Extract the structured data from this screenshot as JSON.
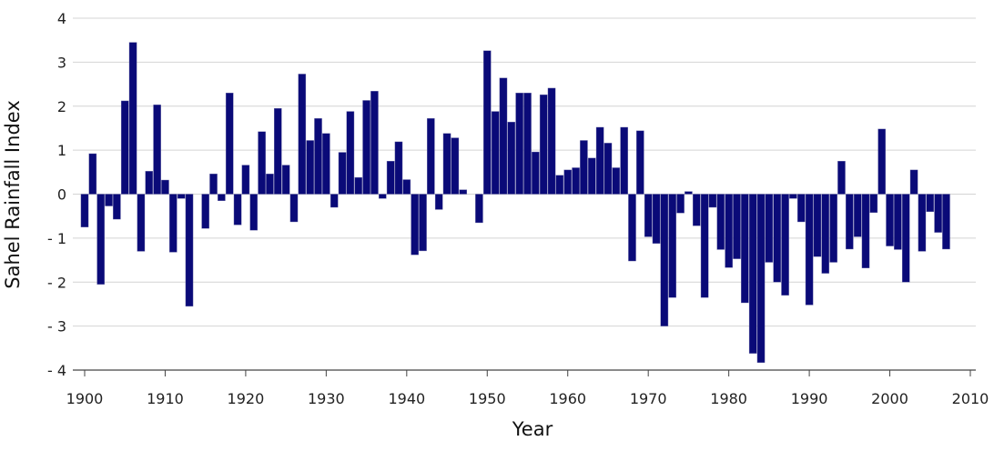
{
  "chart_data": {
    "type": "bar",
    "title": "",
    "xlabel": "Year",
    "ylabel": "Sahel Rainfall Index",
    "xlim": [
      1899,
      2010
    ],
    "ylim": [
      -4,
      4
    ],
    "x_ticks": [
      1900,
      1910,
      1920,
      1930,
      1940,
      1950,
      1960,
      1970,
      1980,
      1990,
      2000,
      2010
    ],
    "y_ticks": [
      4,
      3,
      2,
      1,
      0,
      -1,
      -2,
      -3,
      -4
    ],
    "y_tick_labels": [
      "4",
      "3",
      "2",
      "1",
      "0",
      "- 1",
      "- 2",
      "- 3",
      "- 4"
    ],
    "grid": "horizontal",
    "bar_color": "#0a0a78",
    "years": [
      1900,
      1901,
      1902,
      1903,
      1904,
      1905,
      1906,
      1907,
      1908,
      1909,
      1910,
      1911,
      1912,
      1913,
      1914,
      1915,
      1916,
      1917,
      1918,
      1919,
      1920,
      1921,
      1922,
      1923,
      1924,
      1925,
      1926,
      1927,
      1928,
      1929,
      1930,
      1931,
      1932,
      1933,
      1934,
      1935,
      1936,
      1937,
      1938,
      1939,
      1940,
      1941,
      1942,
      1943,
      1944,
      1945,
      1946,
      1947,
      1948,
      1949,
      1950,
      1951,
      1952,
      1953,
      1954,
      1955,
      1956,
      1957,
      1958,
      1959,
      1960,
      1961,
      1962,
      1963,
      1964,
      1965,
      1966,
      1967,
      1968,
      1969,
      1970,
      1971,
      1972,
      1973,
      1974,
      1975,
      1976,
      1977,
      1978,
      1979,
      1980,
      1981,
      1982,
      1983,
      1984,
      1985,
      1986,
      1987,
      1988,
      1989,
      1990,
      1991,
      1992,
      1993,
      1994,
      1995,
      1996,
      1997,
      1998,
      1999,
      2000,
      2001,
      2002,
      2003,
      2004,
      2005,
      2006,
      2007
    ],
    "values": [
      -0.75,
      0.92,
      -2.05,
      -0.27,
      -0.57,
      2.12,
      3.45,
      -1.3,
      0.52,
      2.03,
      0.32,
      -1.32,
      -0.1,
      -2.55,
      0.0,
      -0.78,
      0.46,
      -0.15,
      2.3,
      -0.7,
      0.66,
      -0.82,
      1.42,
      0.46,
      1.95,
      0.66,
      -0.63,
      2.73,
      1.22,
      1.72,
      1.38,
      -0.3,
      0.95,
      1.88,
      0.38,
      2.13,
      2.34,
      -0.1,
      0.75,
      1.19,
      0.33,
      -1.38,
      -1.29,
      1.72,
      -0.35,
      1.38,
      1.28,
      0.1,
      0.0,
      -0.65,
      3.26,
      1.88,
      2.64,
      1.64,
      2.3,
      2.3,
      0.96,
      2.26,
      2.41,
      0.43,
      0.55,
      0.6,
      1.22,
      0.82,
      1.52,
      1.16,
      0.6,
      1.52,
      -1.52,
      1.44,
      -0.97,
      -1.12,
      -3.0,
      -2.35,
      -0.43,
      0.06,
      -0.72,
      -2.35,
      -0.3,
      -1.26,
      -1.67,
      -1.47,
      -2.47,
      -3.62,
      -3.83,
      -1.55,
      -2.0,
      -2.3,
      -0.1,
      -0.63,
      -2.52,
      -1.42,
      -1.8,
      -1.55,
      0.75,
      -1.25,
      -0.97,
      -1.68,
      -0.42,
      1.48,
      -1.18,
      -1.26,
      -2.0,
      0.55,
      -1.3,
      -0.4,
      -0.87,
      -1.25
    ]
  }
}
